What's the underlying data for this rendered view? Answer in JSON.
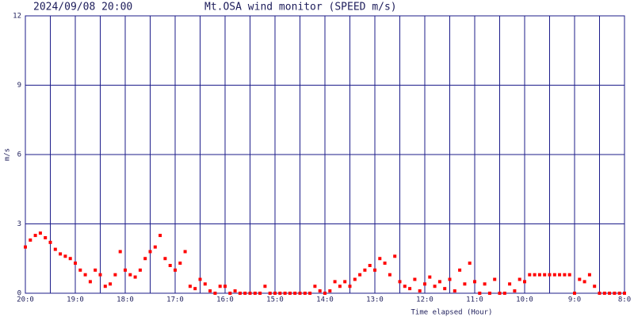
{
  "chart_data": {
    "type": "scatter",
    "timestamp": "2024/09/08 20:00",
    "title": "Mt.OSA wind monitor (SPEED m/s)",
    "y_label": "m/s",
    "x_label": "Time elapsed (Hour)",
    "xlim": [
      0,
      12
    ],
    "ylim": [
      0,
      12
    ],
    "xticks": [
      {
        "value": 0,
        "label": "20:0"
      },
      {
        "value": 1,
        "label": "19:0"
      },
      {
        "value": 2,
        "label": "18:0"
      },
      {
        "value": 3,
        "label": "17:0"
      },
      {
        "value": 4,
        "label": "16:0"
      },
      {
        "value": 5,
        "label": "15:0"
      },
      {
        "value": 6,
        "label": "14:0"
      },
      {
        "value": 7,
        "label": "13:0"
      },
      {
        "value": 8,
        "label": "12:0"
      },
      {
        "value": 9,
        "label": "11:0"
      },
      {
        "value": 10,
        "label": "10:0"
      },
      {
        "value": 11,
        "label": "9:0"
      },
      {
        "value": 12,
        "label": "8:0"
      }
    ],
    "minor_xticks": [
      0.5,
      1.5,
      2.5,
      3.5,
      4.5,
      5.5,
      6.5,
      7.5,
      8.5,
      9.5,
      10.5,
      11.5
    ],
    "yticks": [
      0,
      3,
      6,
      9,
      12
    ],
    "grid": true,
    "grid_color": "#1c1c8a",
    "color": "#ff0000",
    "x": [
      0,
      0.1,
      0.2,
      0.3,
      0.4,
      0.5,
      0.6,
      0.7,
      0.8,
      0.9,
      1,
      1.1,
      1.2,
      1.3,
      1.4,
      1.5,
      1.6,
      1.7,
      1.8,
      1.9,
      2,
      2.1,
      2.2,
      2.3,
      2.4,
      2.5,
      2.6,
      2.7,
      2.8,
      2.9,
      3,
      3.1,
      3.2,
      3.3,
      3.4,
      3.5,
      3.6,
      3.7,
      3.8,
      3.9,
      4,
      4.1,
      4.2,
      4.3,
      4.4,
      4.5,
      4.6,
      4.7,
      4.8,
      4.9,
      5,
      5.1,
      5.2,
      5.3,
      5.4,
      5.5,
      5.6,
      5.7,
      5.8,
      5.9,
      6,
      6.1,
      6.2,
      6.3,
      6.4,
      6.5,
      6.6,
      6.7,
      6.8,
      6.9,
      7,
      7.1,
      7.2,
      7.3,
      7.4,
      7.5,
      7.6,
      7.7,
      7.8,
      7.9,
      8,
      8.1,
      8.2,
      8.3,
      8.4,
      8.5,
      8.6,
      8.7,
      8.8,
      8.9,
      9,
      9.1,
      9.2,
      9.3,
      9.4,
      9.5,
      9.6,
      9.7,
      9.8,
      9.9,
      10,
      10.1,
      10.2,
      10.3,
      10.4,
      10.5,
      10.6,
      10.7,
      10.8,
      10.9,
      11,
      11.1,
      11.2,
      11.3,
      11.4,
      11.5,
      11.6,
      11.7,
      11.8,
      11.9,
      12
    ],
    "values": [
      2.0,
      2.3,
      2.5,
      2.6,
      2.4,
      2.2,
      1.9,
      1.7,
      1.6,
      1.5,
      1.3,
      1.0,
      0.8,
      0.5,
      1.0,
      0.8,
      0.3,
      0.4,
      0.8,
      1.8,
      1.0,
      0.8,
      0.7,
      1.0,
      1.5,
      1.8,
      2.0,
      2.5,
      1.5,
      1.2,
      1.0,
      1.3,
      1.8,
      0.3,
      0.2,
      0.6,
      0.4,
      0.1,
      0,
      0.3,
      0.3,
      0,
      0.1,
      0,
      0,
      0,
      0,
      0,
      0.3,
      0,
      0,
      0,
      0,
      0,
      0,
      0,
      0,
      0,
      0.3,
      0.1,
      0,
      0.1,
      0.5,
      0.3,
      0.5,
      0.3,
      0.6,
      0.8,
      1.0,
      1.2,
      1.0,
      1.5,
      1.3,
      0.8,
      1.6,
      0.5,
      0.3,
      0.2,
      0.6,
      0.1,
      0.4,
      0.7,
      0.3,
      0.5,
      0.2,
      0.6,
      0.1,
      1.0,
      0.4,
      1.3,
      0.5,
      0,
      0.4,
      0,
      0.6,
      0,
      0,
      0.4,
      0.1,
      0.6,
      0.5,
      0.8,
      0.8,
      0.8,
      0.8,
      0.8,
      0.8,
      0.8,
      0.8,
      0.8,
      0,
      0.6,
      0.5,
      0.8,
      0.3,
      0,
      0,
      0,
      0,
      0,
      0
    ]
  }
}
